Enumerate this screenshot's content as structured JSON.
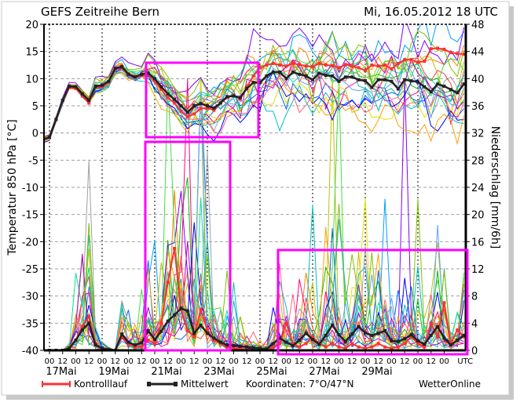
{
  "chart_data": {
    "type": "line",
    "title": "GEFS Zeitreihe Bern",
    "run_label": "Mi, 16.05.2012 18 UTC",
    "ylabel_left": "Temperatur 850 hPa [°C]",
    "ylabel_right": "Niederschlag [mm/6h]",
    "ylim_left": [
      -40,
      20
    ],
    "ylim_right": [
      0,
      48
    ],
    "yticks_left": [
      "20",
      "15",
      "10",
      "5",
      "0",
      "-5",
      "-10",
      "-15",
      "-20",
      "-25",
      "-30",
      "-35",
      "-40"
    ],
    "yticks_right": [
      "48",
      "44",
      "40",
      "36",
      "32",
      "28",
      "24",
      "20",
      "16",
      "12",
      "8",
      "4",
      "0"
    ],
    "x_start": "16.05.2012 18 UTC",
    "x_step_hours": 6,
    "x_tick_labels": [
      "00",
      "12",
      "00",
      "12",
      "00",
      "12",
      "00",
      "12",
      "00",
      "12",
      "00",
      "12",
      "00",
      "12",
      "00",
      "12",
      "00",
      "12",
      "00",
      "12",
      "00",
      "12",
      "00",
      "12",
      "00",
      "12",
      "00",
      "12",
      "00",
      "12",
      "00"
    ],
    "x_tick_unit": "UTC",
    "date_labels": [
      "17Mai",
      "19Mai",
      "21Mai",
      "23Mai",
      "25Mai",
      "27Mai",
      "29Mai"
    ],
    "grid": true,
    "legend": {
      "control_label": "Kontrolllauf",
      "mean_label": "Mittelwert",
      "coordinates": "Koordinaten: 7°O/47°N",
      "source": "WetterOnline"
    },
    "colors": {
      "control": "#ff3030",
      "mean": "#222222",
      "highlight": "#ff00ff",
      "grid": "#a0a0a0"
    },
    "series": [
      {
        "name": "Mittelwert Temperatur",
        "axis": "left",
        "values": [
          -1.2,
          -0.8,
          2.5,
          6,
          8.6,
          8.5,
          7.2,
          6,
          8.6,
          8.8,
          9.5,
          11.9,
          12.2,
          10.8,
          10.3,
          10.8,
          11,
          10,
          8.5,
          7.2,
          6.2,
          5,
          3.8,
          5,
          5.4,
          5,
          4.6,
          5.5,
          6.7,
          6.8,
          6.5,
          8.2,
          9.3,
          9.3,
          10.5,
          11.2,
          11.2,
          10,
          11.2,
          10.8,
          10.5,
          9.8,
          11,
          10.6,
          10.5,
          9.5,
          10.3,
          10.3,
          9.8,
          9.6,
          8.4,
          9.8,
          9.8,
          9.5,
          8.1,
          9.8,
          9.6,
          9.4,
          8.5,
          7.6,
          9,
          8.6,
          8,
          7.4,
          9
        ]
      },
      {
        "name": "Kontrolllauf Temperatur",
        "axis": "left",
        "values": [
          -1.2,
          -0.8,
          2.5,
          6,
          8.4,
          8.2,
          6.8,
          5.5,
          8.4,
          8.6,
          9.4,
          11.8,
          12,
          10.9,
          10.4,
          10.6,
          10.8,
          9.6,
          8,
          6.5,
          5.5,
          4,
          3,
          3.5,
          4.5,
          4.6,
          4.2,
          5.5,
          6.5,
          7,
          6.2,
          8.5,
          10.5,
          12,
          12.5,
          12.8,
          12.5,
          12.3,
          12.8,
          12.6,
          12.3,
          12.2,
          12.8,
          12.5,
          12.4,
          12,
          12.6,
          12.3,
          12,
          11.5,
          12.5,
          12.3,
          12.5,
          11.8,
          12.8,
          13.5,
          13.5,
          13,
          13.2,
          15.5,
          15.6,
          15.4,
          14.8,
          14.6,
          14.5
        ]
      },
      {
        "name": "Mittelwert Niederschlag",
        "axis": "right",
        "values": [
          0,
          0,
          0,
          0,
          0.3,
          1.5,
          3,
          4,
          0.8,
          0.3,
          0.1,
          0,
          2.4,
          1.2,
          0.8,
          1.1,
          2.9,
          1.6,
          2.8,
          4.3,
          5.2,
          6.2,
          5.8,
          2.5,
          3.7,
          2.5,
          1.8,
          1.2,
          0.8,
          0.7,
          0.6,
          0.5,
          0.4,
          0.3,
          0.2,
          1,
          1.8,
          1.2,
          0.7,
          1.5,
          2.5,
          1.6,
          0.9,
          2.2,
          3.7,
          2.3,
          1.3,
          2.4,
          3.5,
          2.6,
          2.2,
          2.5,
          2.9,
          1.4,
          1.3,
          1.7,
          2.3,
          1.4,
          0.9,
          2.2,
          3.5,
          1.8,
          0.8,
          1.5,
          2.2
        ]
      },
      {
        "name": "Kontrolllauf Niederschlag",
        "axis": "right",
        "values": [
          0,
          0,
          0,
          0,
          0.2,
          1.5,
          3.5,
          5,
          1,
          0.3,
          0,
          0,
          2,
          1,
          0.5,
          0.5,
          1.5,
          1,
          4,
          10,
          15,
          6,
          3,
          2,
          6,
          3,
          1.5,
          1,
          0.5,
          0.3,
          0.2,
          0.1,
          0.1,
          0,
          0,
          0.5,
          1,
          4,
          1,
          0.5,
          1,
          2,
          1,
          0.5,
          1,
          0.5,
          0.3,
          1,
          0.5,
          0.3,
          0.5,
          1,
          0.5,
          0.3,
          0.5,
          1,
          2,
          1,
          0.5,
          4,
          2,
          7,
          1,
          3,
          2
        ]
      }
    ],
    "ensemble": {
      "member_count": 20,
      "colors": [
        "#00c000",
        "#00a0ff",
        "#ff8000",
        "#c0c000",
        "#8000ff",
        "#ff0080",
        "#00c0c0",
        "#0060ff",
        "#a0a0a0",
        "#40e040",
        "#e0e000",
        "#ff4040",
        "#0000ff",
        "#00e0a0",
        "#c000c0",
        "#ffa000",
        "#60a0ff",
        "#80c000",
        "#ff6080",
        "#20b0b0"
      ]
    }
  }
}
